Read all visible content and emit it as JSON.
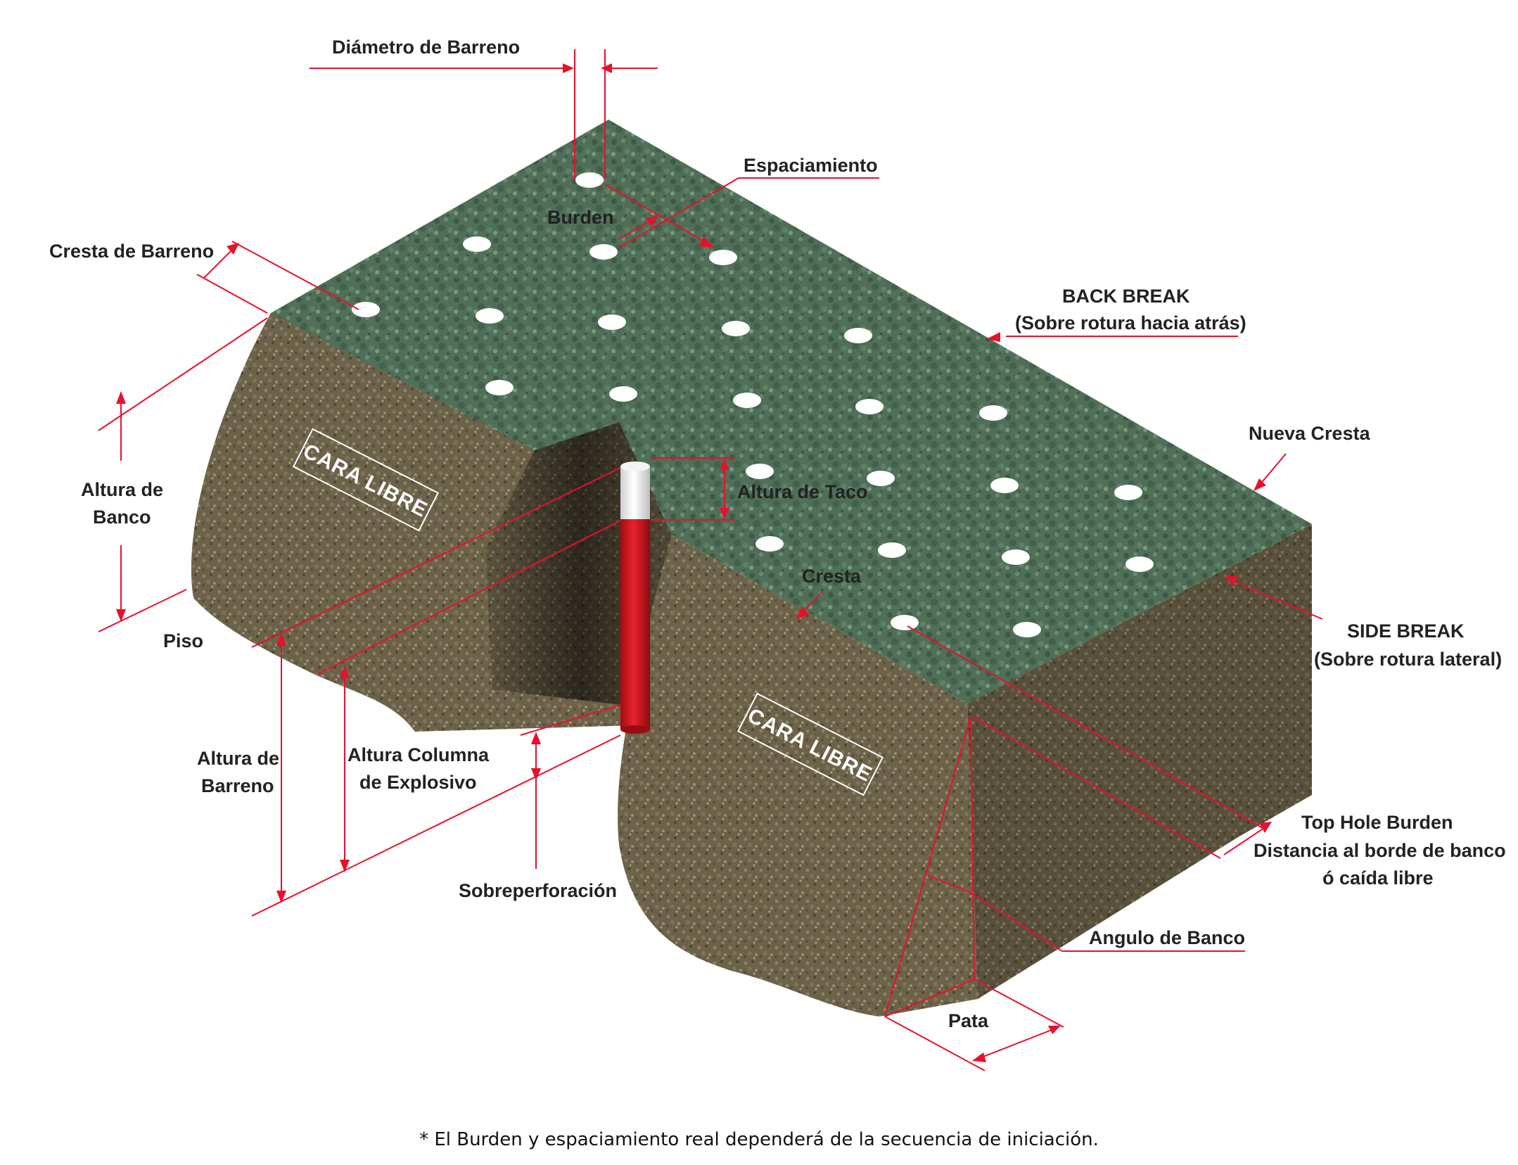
{
  "labels": {
    "diametro": "Diámetro de Barreno",
    "espaciamiento": "Espaciamiento",
    "burden": "Burden",
    "cresta_barreno": "Cresta de Barreno",
    "back_break_1": "BACK BREAK",
    "back_break_2": "(Sobre rotura hacia atrás)",
    "nueva_cresta": "Nueva Cresta",
    "altura_banco_1": "Altura de",
    "altura_banco_2": "Banco",
    "piso": "Piso",
    "altura_taco": "Altura de Taco",
    "cresta": "Cresta",
    "side_break_1": "SIDE BREAK",
    "side_break_2": "(Sobre rotura lateral)",
    "altura_barreno_1": "Altura de",
    "altura_barreno_2": "Barreno",
    "altura_columna_1": "Altura Columna",
    "altura_columna_2": "de Explosivo",
    "sobreperforacion": "Sobreperforación",
    "top_hole_1": "Top Hole Burden",
    "top_hole_2": "Distancia al borde de banco",
    "top_hole_3": "ó caída libre",
    "angulo_banco": "Angulo de Banco",
    "pata": "Pata",
    "cara_libre_left": "CARA LIBRE",
    "cara_libre_right": "CARA LIBRE"
  },
  "footnote": "* El Burden y espaciamiento real dependerá de la secuencia de iniciación.",
  "colors": {
    "annotation": "#e8102a",
    "top_surface": "#4f6e58",
    "face_rock": "#6b6149",
    "explosive": "#d4121c",
    "stemming": "#ffffff"
  }
}
